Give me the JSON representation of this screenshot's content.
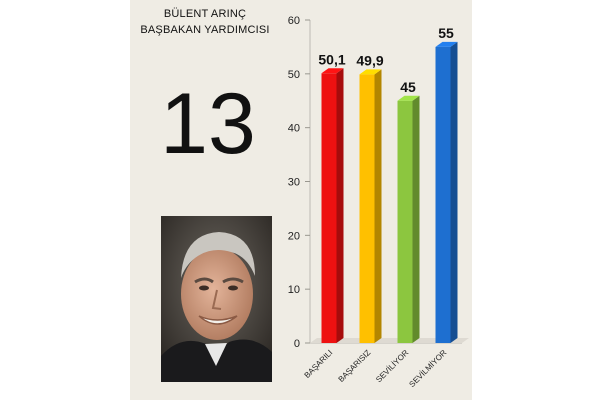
{
  "header": {
    "name": "BÜLENT ARINÇ",
    "role": "BAŞBAKAN YARDIMCISI",
    "rank": "13"
  },
  "chart_data": {
    "type": "bar",
    "categories": [
      "BAŞARILI",
      "BAŞARISIZ",
      "SEVİLİYOR",
      "SEVİLMİYOR"
    ],
    "values": [
      50.1,
      49.9,
      45,
      55
    ],
    "value_labels": [
      "50,1",
      "49,9",
      "45",
      "55"
    ],
    "colors": [
      "#ee1111",
      "#ffc000",
      "#8cc63f",
      "#1e6fd0"
    ],
    "ylim": [
      0,
      60
    ],
    "yticks": [
      0,
      10,
      20,
      30,
      40,
      50,
      60
    ],
    "title": "",
    "xlabel": "",
    "ylabel": "",
    "grid": false,
    "legend": "none"
  }
}
